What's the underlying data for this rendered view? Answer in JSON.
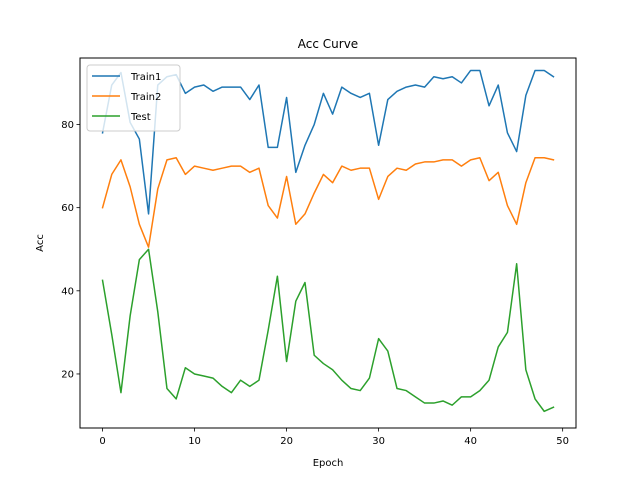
{
  "chart_data": {
    "type": "line",
    "title": "Acc Curve",
    "xlabel": "Epoch",
    "ylabel": "Acc",
    "xlim": [
      -2.45,
      51.45
    ],
    "ylim": [
      7.0,
      96.0
    ],
    "x_ticks": [
      0,
      10,
      20,
      30,
      40,
      50
    ],
    "y_ticks": [
      20,
      40,
      60,
      80
    ],
    "grid": false,
    "legend_position": "top-left",
    "x": [
      0,
      1,
      2,
      3,
      4,
      5,
      6,
      7,
      8,
      9,
      10,
      11,
      12,
      13,
      14,
      15,
      16,
      17,
      18,
      19,
      20,
      21,
      22,
      23,
      24,
      25,
      26,
      27,
      28,
      29,
      30,
      31,
      32,
      33,
      34,
      35,
      36,
      37,
      38,
      39,
      40,
      41,
      42,
      43,
      44,
      45,
      46,
      47,
      48,
      49
    ],
    "series": [
      {
        "name": "Train1",
        "color": "#1f77b4",
        "values": [
          78.0,
          89.5,
          92.5,
          80.5,
          76.5,
          58.5,
          89.5,
          91.5,
          92.0,
          87.5,
          89.0,
          89.5,
          88.0,
          89.0,
          89.0,
          89.0,
          86.0,
          89.5,
          74.5,
          74.5,
          86.5,
          68.5,
          75.0,
          80.0,
          87.5,
          82.5,
          89.0,
          87.5,
          86.5,
          87.5,
          75.0,
          86.0,
          88.0,
          89.0,
          89.5,
          89.0,
          91.5,
          91.0,
          91.5,
          90.0,
          93.0,
          93.0,
          84.5,
          89.5,
          78.0,
          73.5,
          87.0,
          93.0,
          93.0,
          91.5
        ]
      },
      {
        "name": "Train2",
        "color": "#ff7f0e",
        "values": [
          60.0,
          68.0,
          71.5,
          65.0,
          56.0,
          50.5,
          64.5,
          71.5,
          72.0,
          68.0,
          70.0,
          69.5,
          69.0,
          69.5,
          70.0,
          70.0,
          68.5,
          69.5,
          60.5,
          57.5,
          67.5,
          56.0,
          58.5,
          63.5,
          68.0,
          66.0,
          70.0,
          69.0,
          69.5,
          69.5,
          62.0,
          67.5,
          69.5,
          69.0,
          70.5,
          71.0,
          71.0,
          71.5,
          71.5,
          70.0,
          71.5,
          72.0,
          66.5,
          68.5,
          60.5,
          56.0,
          66.0,
          72.0,
          72.0,
          71.5
        ]
      },
      {
        "name": "Test",
        "color": "#2ca02c",
        "values": [
          42.5,
          29.5,
          15.5,
          34.0,
          47.5,
          50.0,
          35.0,
          16.5,
          14.0,
          21.5,
          20.0,
          19.5,
          19.0,
          17.0,
          15.5,
          18.5,
          17.0,
          18.5,
          30.5,
          43.5,
          23.0,
          37.5,
          42.0,
          24.5,
          22.5,
          21.0,
          18.5,
          16.5,
          16.0,
          19.0,
          28.5,
          25.5,
          16.5,
          16.0,
          14.5,
          13.0,
          13.0,
          13.5,
          12.5,
          14.5,
          14.5,
          16.0,
          18.5,
          26.5,
          30.0,
          46.5,
          21.0,
          14.0,
          11.0,
          12.0
        ]
      }
    ]
  }
}
